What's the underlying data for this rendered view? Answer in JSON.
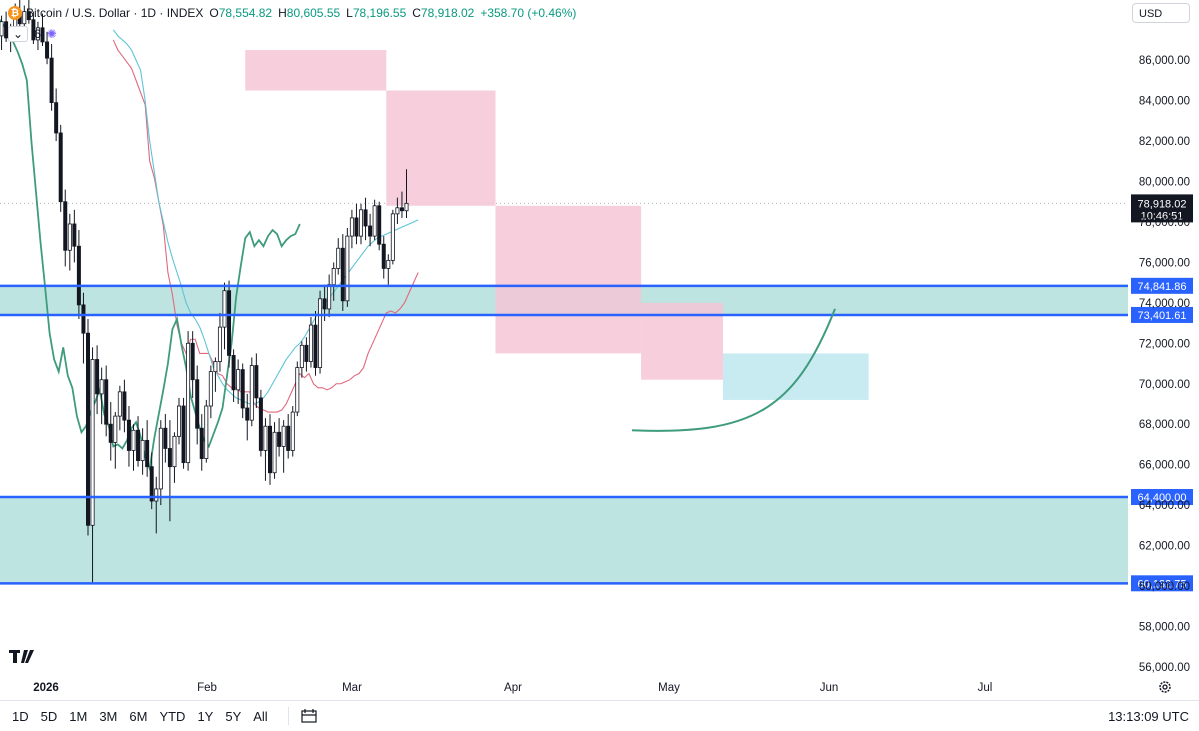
{
  "header": {
    "symbol": "Bitcoin / U.S. Dollar · 1D · INDEX",
    "ohlc": [
      {
        "k": "O",
        "v": "78,554.82"
      },
      {
        "k": "H",
        "v": "80,605.55"
      },
      {
        "k": "L",
        "v": "78,196.55"
      },
      {
        "k": "C",
        "v": "78,918.02"
      }
    ],
    "change": "+358.70 (+0.46%)",
    "indicator_count": "6",
    "currency": "USD"
  },
  "colors": {
    "up": "#089981",
    "zone": "#b2dfdb",
    "level_line": "#2962ff",
    "cloud_bear": "#f5c6d6",
    "cloud_bull": "#bde8ee",
    "lagging": "#3f9b7d",
    "base": "#e0697f",
    "conversion": "#5fc4d6"
  },
  "chart_data": {
    "type": "candlestick",
    "title": "Bitcoin / U.S. Dollar · 1D · INDEX",
    "ylim": [
      55000,
      87500
    ],
    "y_ticks": [
      "56,000.00",
      "58,000.00",
      "60,000.00",
      "62,000.00",
      "64,000.00",
      "66,000.00",
      "68,000.00",
      "70,000.00",
      "72,000.00",
      "74,000.00",
      "76,000.00",
      "78,000.00",
      "80,000.00",
      "82,000.00",
      "84,000.00",
      "86,000.00"
    ],
    "x_labels": [
      "2026",
      "Feb",
      "Mar",
      "Apr",
      "May",
      "Jun",
      "Jul"
    ],
    "last_price": {
      "value": 78918.02,
      "label": "78,918.02",
      "countdown": "10:46:51"
    },
    "levels": [
      {
        "value": 74841.86,
        "label": "74,841.86"
      },
      {
        "value": 73401.61,
        "label": "73,401.61"
      },
      {
        "value": 64400.0,
        "label": "64,400.00"
      },
      {
        "value": 60132.75,
        "label": "60,132.75"
      }
    ],
    "zones": [
      {
        "from": 73401.61,
        "to": 74841.86
      },
      {
        "from": 60132.75,
        "to": 64400.0
      }
    ],
    "candles": [
      [
        87800,
        88500,
        86800,
        87200
      ],
      [
        87200,
        88200,
        86500,
        87900
      ],
      [
        87900,
        88400,
        86900,
        87100
      ],
      [
        87100,
        87800,
        86400,
        87500
      ],
      [
        87500,
        88800,
        87000,
        88300
      ],
      [
        88300,
        89000,
        87600,
        87800
      ],
      [
        87800,
        88700,
        87200,
        88400
      ],
      [
        88400,
        89000,
        87800,
        88000
      ],
      [
        88000,
        88400,
        86800,
        87000
      ],
      [
        87000,
        87900,
        86500,
        87600
      ],
      [
        87600,
        88300,
        86700,
        86900
      ],
      [
        86900,
        87400,
        85800,
        86100
      ],
      [
        86100,
        86800,
        83500,
        83900
      ],
      [
        83900,
        84600,
        82000,
        82400
      ],
      [
        82400,
        82800,
        78500,
        79000
      ],
      [
        79000,
        79600,
        75800,
        76600
      ],
      [
        76600,
        78400,
        75600,
        77900
      ],
      [
        77900,
        78600,
        76000,
        76800
      ],
      [
        76800,
        77600,
        73200,
        73900
      ],
      [
        73900,
        74500,
        71000,
        72500
      ],
      [
        72500,
        73200,
        62500,
        63000
      ],
      [
        63000,
        71800,
        60132,
        71200
      ],
      [
        71200,
        71900,
        68500,
        69500
      ],
      [
        69500,
        70800,
        68000,
        70200
      ],
      [
        70200,
        70900,
        67400,
        68000
      ],
      [
        68000,
        69100,
        66200,
        67100
      ],
      [
        67100,
        68600,
        65800,
        68400
      ],
      [
        68400,
        69900,
        67700,
        69600
      ],
      [
        69600,
        70200,
        67600,
        68200
      ],
      [
        68200,
        68900,
        65900,
        66700
      ],
      [
        66700,
        68000,
        65700,
        67700
      ],
      [
        67700,
        68400,
        65900,
        66200
      ],
      [
        66200,
        67800,
        65500,
        67200
      ],
      [
        67200,
        68200,
        65400,
        65900
      ],
      [
        65900,
        66600,
        63800,
        64200
      ],
      [
        64200,
        65400,
        62600,
        64800
      ],
      [
        64800,
        68200,
        64000,
        67800
      ],
      [
        67800,
        68500,
        66100,
        66800
      ],
      [
        66800,
        68200,
        63200,
        65900
      ],
      [
        65900,
        67600,
        65100,
        67400
      ],
      [
        67400,
        69300,
        67000,
        68900
      ],
      [
        68900,
        69300,
        65800,
        66100
      ],
      [
        66100,
        72600,
        65700,
        72000
      ],
      [
        72000,
        72600,
        69300,
        70200
      ],
      [
        70200,
        70900,
        67000,
        67800
      ],
      [
        67800,
        68500,
        65700,
        66300
      ],
      [
        66300,
        69200,
        66100,
        68900
      ],
      [
        68900,
        70900,
        68300,
        70600
      ],
      [
        70600,
        71300,
        69600,
        71100
      ],
      [
        71100,
        73500,
        70600,
        72800
      ],
      [
        72800,
        75000,
        71700,
        74600
      ],
      [
        74600,
        75100,
        70800,
        71400
      ],
      [
        71400,
        71700,
        69100,
        69700
      ],
      [
        69700,
        71200,
        69000,
        70700
      ],
      [
        70700,
        71000,
        68300,
        68800
      ],
      [
        68800,
        69500,
        67200,
        68200
      ],
      [
        68200,
        71300,
        67900,
        70900
      ],
      [
        70900,
        71500,
        68800,
        69300
      ],
      [
        69300,
        69700,
        66400,
        66700
      ],
      [
        66700,
        68300,
        65200,
        67900
      ],
      [
        67900,
        68500,
        65000,
        65600
      ],
      [
        65600,
        68100,
        65300,
        67600
      ],
      [
        67600,
        68300,
        66400,
        66900
      ],
      [
        66900,
        68200,
        65600,
        67900
      ],
      [
        67900,
        68500,
        66300,
        66700
      ],
      [
        66700,
        68900,
        66400,
        68600
      ],
      [
        68600,
        71100,
        68400,
        70800
      ],
      [
        70800,
        72100,
        70300,
        71900
      ],
      [
        71900,
        72300,
        70600,
        71100
      ],
      [
        71100,
        73300,
        70800,
        72900
      ],
      [
        72900,
        73600,
        70400,
        70800
      ],
      [
        70800,
        74600,
        70500,
        74200
      ],
      [
        74200,
        74900,
        73100,
        73700
      ],
      [
        73700,
        75400,
        73300,
        74900
      ],
      [
        74900,
        76000,
        74100,
        75700
      ],
      [
        75700,
        77200,
        75400,
        76700
      ],
      [
        76700,
        77400,
        73600,
        74100
      ],
      [
        74100,
        77700,
        73800,
        77300
      ],
      [
        77300,
        78600,
        76700,
        78200
      ],
      [
        78200,
        78900,
        76900,
        77300
      ],
      [
        77300,
        78900,
        76900,
        78600
      ],
      [
        78600,
        79200,
        77100,
        77800
      ],
      [
        77800,
        78400,
        76800,
        77300
      ],
      [
        77300,
        79100,
        77100,
        78800
      ],
      [
        78800,
        79000,
        76600,
        76900
      ],
      [
        76900,
        77300,
        75200,
        75700
      ],
      [
        75700,
        76400,
        74900,
        76100
      ],
      [
        76100,
        78600,
        75900,
        78400
      ],
      [
        78400,
        79200,
        77900,
        78700
      ],
      [
        78700,
        79500,
        78200,
        78554
      ],
      [
        78554,
        80605,
        78196,
        78918
      ]
    ],
    "series": [
      {
        "values": [
          87000,
          86500,
          86200,
          85900,
          85600,
          85000,
          84400,
          83800,
          81000,
          80200,
          79000,
          77800,
          75500,
          74400,
          72900,
          72000,
          71500,
          72200,
          72200,
          71500,
          71500,
          71500,
          71000,
          70500,
          70400,
          70000,
          69800,
          69800,
          69600,
          69600,
          69600,
          69000,
          68800,
          68700,
          68600,
          68600,
          68600,
          68700,
          69000,
          69500,
          70000,
          70500,
          70300,
          70500,
          70000,
          69800,
          69800,
          69700,
          69800,
          70000,
          70000,
          70100,
          70200,
          70400,
          70500,
          70800,
          71500,
          72000,
          72500,
          73000,
          73500,
          73600,
          73500,
          73700,
          74000,
          74500,
          75000,
          75500
        ]
      },
      {
        "values": [
          87500,
          87200,
          87000,
          86800,
          86500,
          86000,
          85500,
          84000,
          82000,
          80500,
          79000,
          78000,
          77000,
          76200,
          75500,
          74800,
          74000,
          73500,
          73200,
          72800,
          72200,
          71500,
          70800,
          70400,
          70000,
          69700,
          69500,
          69300,
          69200,
          69100,
          69000,
          69000,
          69100,
          69300,
          69600,
          70000,
          70400,
          70800,
          71200,
          71500,
          71800,
          72000,
          72300,
          72700,
          73100,
          73500,
          73800,
          74100,
          74400,
          74700,
          75000,
          75300,
          75600,
          75900,
          76200,
          76500,
          76800,
          77000,
          77200,
          77300,
          77400,
          77500,
          77600,
          77700,
          77800,
          77900,
          78000,
          78100
        ]
      },
      {
        "values": [
          88200,
          88000,
          87700,
          87300,
          86900,
          86400,
          85800,
          85000,
          82000,
          79500,
          77000,
          74800,
          72500,
          71200,
          70600,
          71800,
          70400,
          69800,
          68400,
          67600,
          67900,
          68600,
          69100,
          69700,
          68500,
          67900,
          66900,
          67000,
          66800,
          67200,
          67800,
          68100,
          67400,
          66400,
          65800,
          67300,
          68500,
          69700,
          71000,
          72700,
          73200,
          71900,
          70800,
          69400,
          68600,
          67800,
          67200,
          66900,
          67500,
          68100,
          68800,
          70400,
          72000,
          74300,
          75800,
          77200,
          77500,
          76800,
          77100,
          76800,
          77300,
          77600,
          77400,
          76800,
          77100,
          77300,
          77400,
          77900
        ]
      }
    ],
    "cloud": [
      {
        "from": 55,
        "to": 86,
        "top": 86500,
        "bottom": 84500
      },
      {
        "from": 86,
        "to": 110,
        "top": 84500,
        "bottom": 78800
      },
      {
        "from": 110,
        "to": 142,
        "top": 78800,
        "bottom": 71500
      },
      {
        "from": 142,
        "to": 160,
        "top": 74000,
        "bottom": 70200
      },
      {
        "from": 160,
        "to": 192,
        "top": 71500,
        "bottom": 69200
      }
    ],
    "arc": {
      "from_price": 67700,
      "to_price": 73700
    }
  },
  "bottom": {
    "ranges": [
      "1D",
      "5D",
      "1M",
      "3M",
      "6M",
      "YTD",
      "1Y",
      "5Y",
      "All"
    ],
    "clock": "13:13:09 UTC"
  }
}
